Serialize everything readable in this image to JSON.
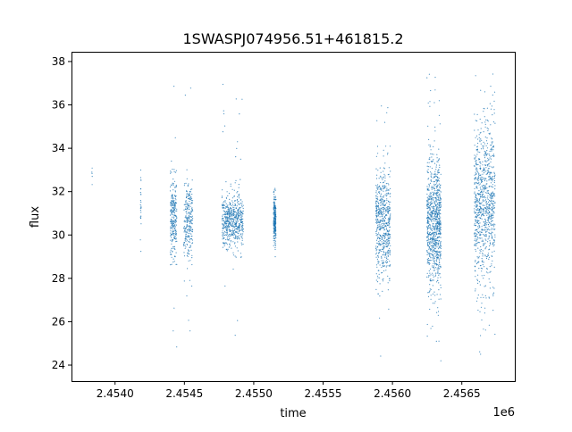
{
  "chart_data": {
    "type": "scatter",
    "title": "1SWASPJ074956.51+461815.2",
    "xlabel": "time",
    "ylabel": "flux",
    "x_offset_label": "1e6",
    "xlim": [
      2453686,
      2456882
    ],
    "ylim": [
      23.26,
      38.45
    ],
    "x_ticks": [
      2454000,
      2454500,
      2455000,
      2455500,
      2456000,
      2456500
    ],
    "x_tick_labels": [
      "2.4540",
      "2.4545",
      "2.4550",
      "2.4555",
      "2.4560",
      "2.4565"
    ],
    "y_ticks": [
      24,
      26,
      28,
      30,
      32,
      34,
      36,
      38
    ],
    "y_tick_labels": [
      "24",
      "26",
      "28",
      "30",
      "32",
      "34",
      "36",
      "38"
    ],
    "grid": false,
    "legend": "none",
    "color": "#1f77b4",
    "seasons": [
      {
        "t_start": 2453833,
        "t_end": 2453836,
        "flux_center": 32.9,
        "flux_core": [
          32.3,
          33.4
        ],
        "flux_extent": [
          32.3,
          33.4
        ],
        "density": "very sparse"
      },
      {
        "t_start": 2454183,
        "t_end": 2454188,
        "flux_center": 31.5,
        "flux_core": [
          28.7,
          33.6
        ],
        "flux_extent": [
          28.7,
          33.6
        ],
        "density": "sparse"
      },
      {
        "t_start": 2454398,
        "t_end": 2454445,
        "flux_center": 30.8,
        "flux_core": [
          29.0,
          32.5
        ],
        "flux_extent": [
          24.0,
          37.6
        ],
        "density": "medium"
      },
      {
        "t_start": 2454495,
        "t_end": 2454560,
        "flux_center": 30.6,
        "flux_core": [
          28.8,
          32.6
        ],
        "flux_extent": [
          24.5,
          37.6
        ],
        "density": "medium"
      },
      {
        "t_start": 2454770,
        "t_end": 2454925,
        "flux_center": 30.6,
        "flux_core": [
          29.4,
          31.8
        ],
        "flux_extent": [
          24.2,
          37.5
        ],
        "density": "dense"
      },
      {
        "t_start": 2455143,
        "t_end": 2455160,
        "flux_center": 30.7,
        "flux_core": [
          29.7,
          31.9
        ],
        "flux_extent": [
          29.0,
          32.3
        ],
        "density": "medium"
      },
      {
        "t_start": 2455880,
        "t_end": 2455985,
        "flux_center": 30.5,
        "flux_core": [
          28.0,
          33.0
        ],
        "flux_extent": [
          24.0,
          37.1
        ],
        "density": "dense"
      },
      {
        "t_start": 2456248,
        "t_end": 2456350,
        "flux_center": 30.5,
        "flux_core": [
          27.5,
          33.5
        ],
        "flux_extent": [
          24.0,
          37.7
        ],
        "density": "very dense"
      },
      {
        "t_start": 2456590,
        "t_end": 2456740,
        "flux_center": 31.5,
        "flux_core": [
          28.0,
          35.0
        ],
        "flux_extent": [
          24.0,
          37.6
        ],
        "density": "very dense"
      }
    ]
  }
}
